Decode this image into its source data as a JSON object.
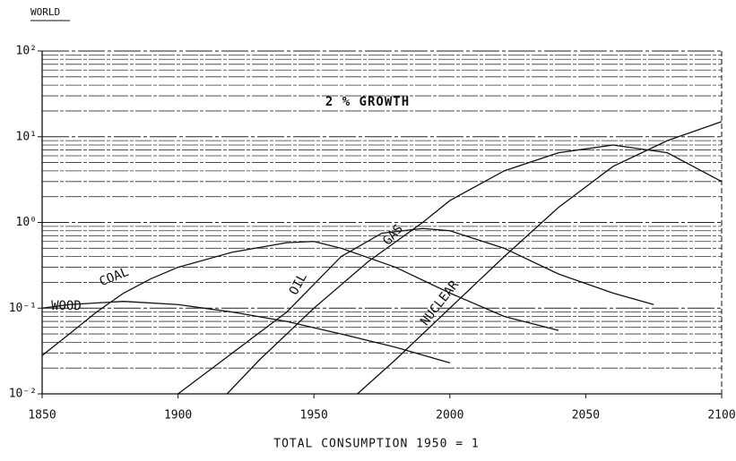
{
  "chart_data": {
    "type": "line",
    "title": "WORLD",
    "annotation": "2 % GROWTH",
    "xlabel": "TOTAL CONSUMPTION 1950 = 1",
    "log_y": true,
    "grid": true,
    "xlim": [
      1850,
      2100
    ],
    "xticks": [
      1850,
      1900,
      1950,
      2000,
      2050,
      2100
    ],
    "ylim": [
      0.01,
      100
    ],
    "yticks": [
      {
        "value": 0.01,
        "label": "10⁻²"
      },
      {
        "value": 0.1,
        "label": "10⁻¹"
      },
      {
        "value": 1,
        "label": "10⁰"
      },
      {
        "value": 10,
        "label": "10¹"
      },
      {
        "value": 100,
        "label": "10²"
      }
    ],
    "yminorticks": [
      0.02,
      0.03,
      0.04,
      0.05,
      0.06,
      0.07,
      0.08,
      0.09,
      0.2,
      0.3,
      0.4,
      0.5,
      0.6,
      0.7,
      0.8,
      0.9,
      2,
      3,
      4,
      5,
      6,
      7,
      8,
      9,
      20,
      30,
      40,
      50,
      60,
      70,
      80,
      90
    ],
    "series": [
      {
        "name": "WOOD",
        "color": "#111111",
        "x": [
          1850,
          1860,
          1880,
          1900,
          1920,
          1940,
          1960,
          1980,
          2000
        ],
        "values": [
          0.1,
          0.11,
          0.12,
          0.11,
          0.09,
          0.07,
          0.05,
          0.035,
          0.023
        ]
      },
      {
        "name": "COAL",
        "color": "#111111",
        "x": [
          1850,
          1860,
          1870,
          1880,
          1890,
          1900,
          1920,
          1940,
          1950,
          1960,
          1980,
          2000,
          2020,
          2040
        ],
        "values": [
          0.028,
          0.05,
          0.09,
          0.15,
          0.22,
          0.3,
          0.45,
          0.58,
          0.6,
          0.5,
          0.3,
          0.15,
          0.08,
          0.055
        ]
      },
      {
        "name": "OIL",
        "color": "#111111",
        "x": [
          1900,
          1920,
          1940,
          1960,
          1975,
          1990,
          2000,
          2020,
          2040,
          2060,
          2075
        ],
        "values": [
          0.01,
          0.03,
          0.09,
          0.4,
          0.75,
          0.85,
          0.8,
          0.5,
          0.25,
          0.15,
          0.11
        ]
      },
      {
        "name": "GAS",
        "color": "#111111",
        "x": [
          1918,
          1930,
          1950,
          1970,
          1990,
          2000,
          2020,
          2040,
          2060,
          2080,
          2100
        ],
        "values": [
          0.01,
          0.025,
          0.1,
          0.35,
          1.0,
          1.8,
          4,
          6.5,
          8,
          6.5,
          3
        ]
      },
      {
        "name": "NUCLEAR",
        "color": "#111111",
        "x": [
          1966,
          1980,
          2000,
          2020,
          2040,
          2060,
          2080,
          2100
        ],
        "values": [
          0.01,
          0.025,
          0.1,
          0.4,
          1.5,
          4.5,
          9,
          15
        ]
      }
    ]
  }
}
